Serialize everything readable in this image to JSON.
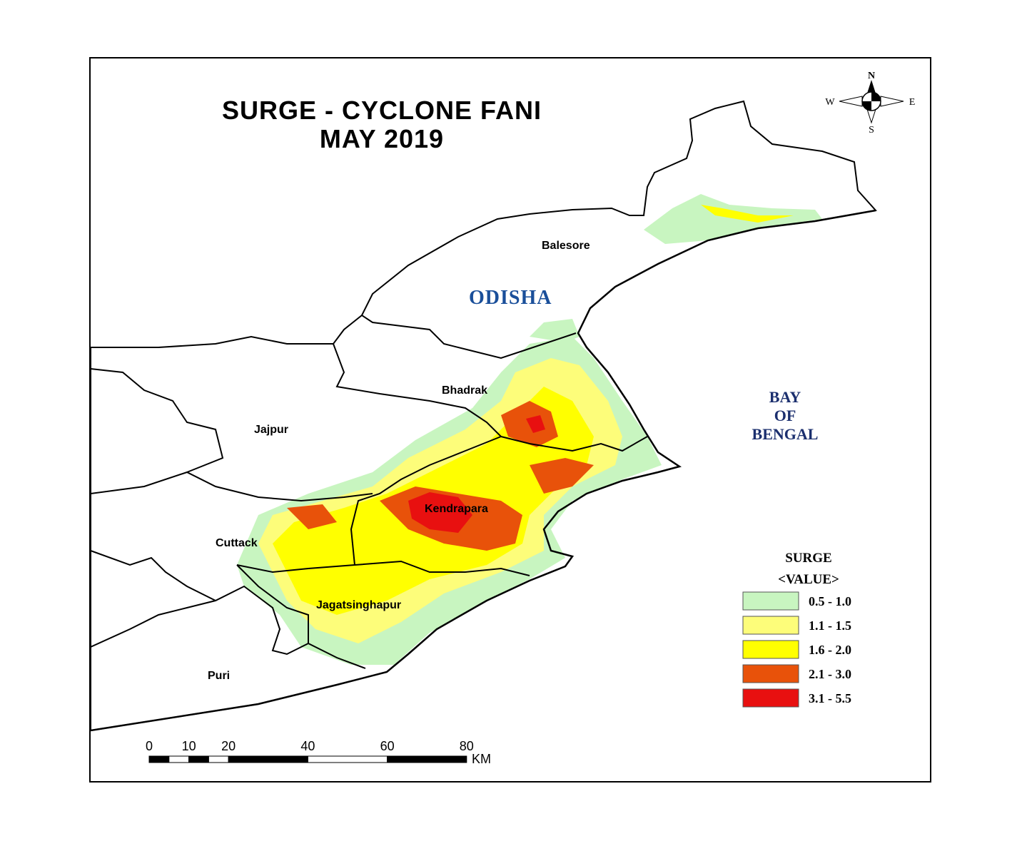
{
  "title": {
    "line1": "SURGE - CYCLONE FANI",
    "line2": "MAY 2019"
  },
  "labels": {
    "state": "ODISHA",
    "sea_line1": "BAY",
    "sea_line2": "OF",
    "sea_line3": "BENGAL"
  },
  "districts": [
    "Balesore",
    "Bhadrak",
    "Jajpur",
    "Kendrapara",
    "Cuttack",
    "Jagatsinghapur",
    "Puri"
  ],
  "compass": {
    "n": "N",
    "s": "S",
    "e": "E",
    "w": "W"
  },
  "legend": {
    "title": "SURGE",
    "subtitle": "<VALUE>",
    "classes": [
      {
        "label": "0.5 - 1.0",
        "color": "#c8f5c0"
      },
      {
        "label": "1.1 - 1.5",
        "color": "#fdfd7a"
      },
      {
        "label": "1.6 - 2.0",
        "color": "#ffff00"
      },
      {
        "label": "2.1 - 3.0",
        "color": "#e8520a"
      },
      {
        "label": "3.1 - 5.5",
        "color": "#e81010"
      }
    ]
  },
  "scale_bar": {
    "ticks": [
      "0",
      "10",
      "20",
      "40",
      "60",
      "80"
    ],
    "unit": "KM"
  },
  "colors": {
    "state_label": "#1a4f9a",
    "sea_label": "#1b2f6e"
  }
}
